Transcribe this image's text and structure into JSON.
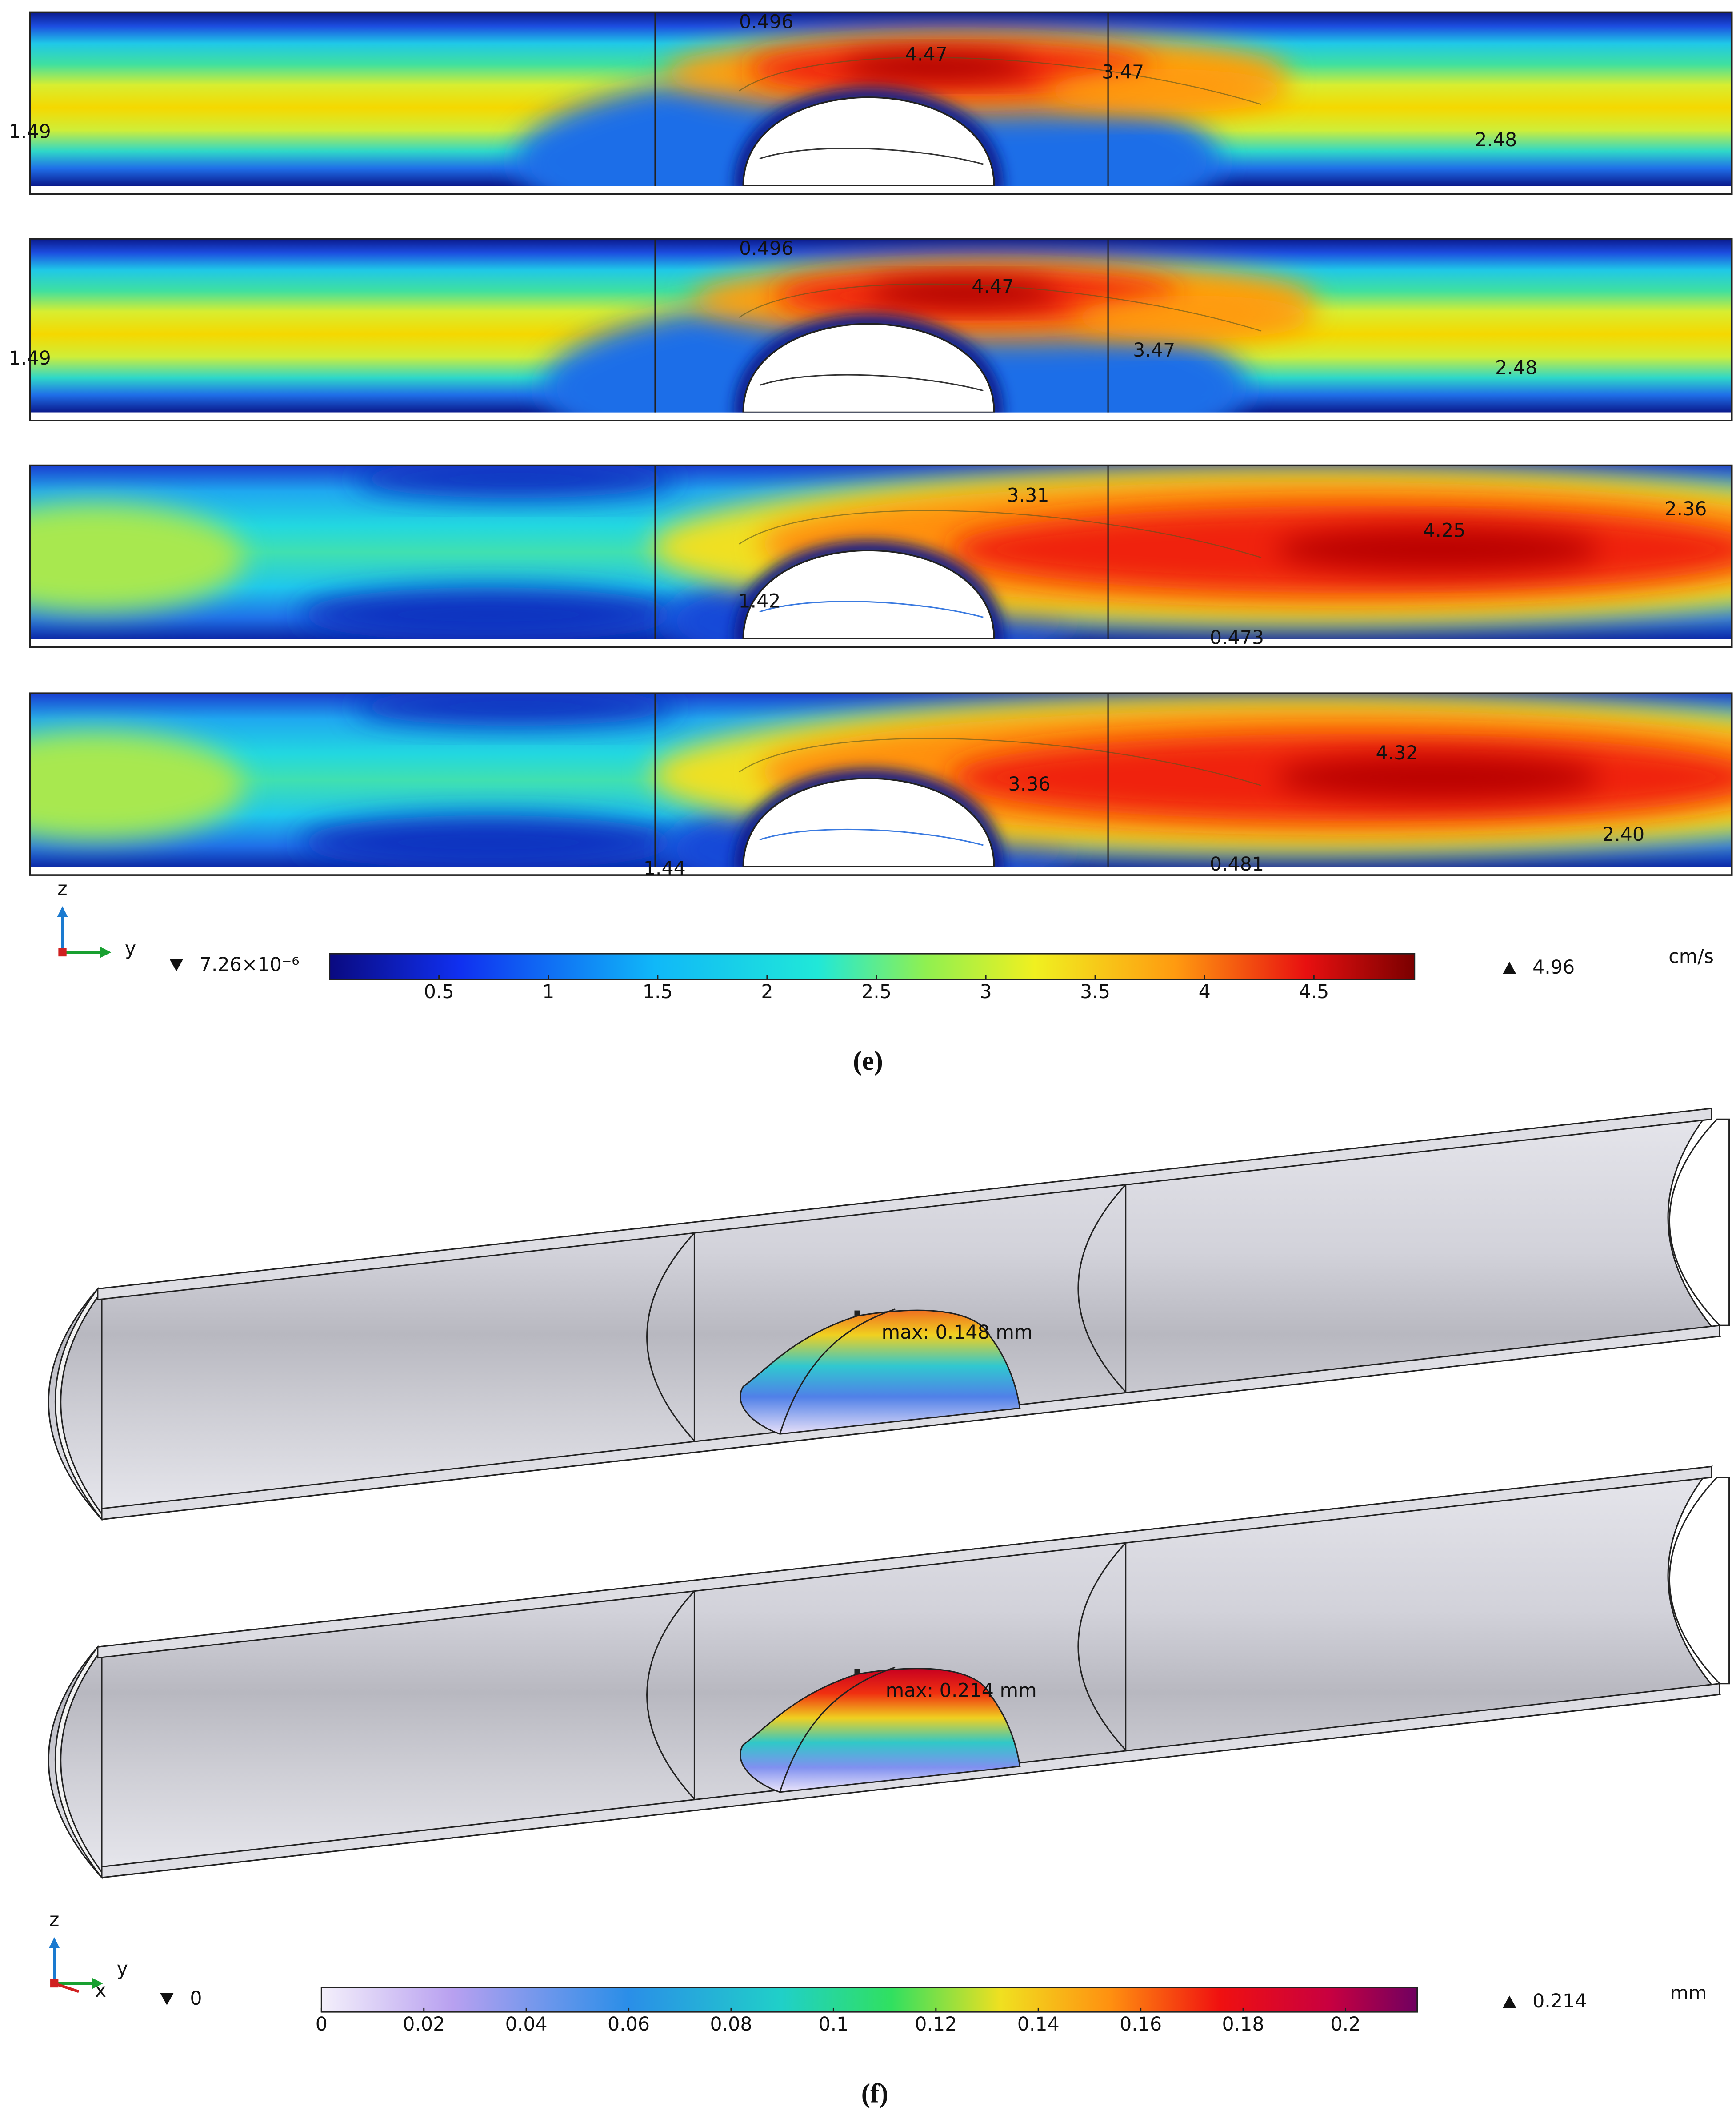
{
  "panel_e": {
    "plots": [
      {
        "labels": [
          "0.496",
          "4.47",
          "3.47",
          "1.49",
          "2.48"
        ]
      },
      {
        "labels": [
          "0.496",
          "4.47",
          "3.47",
          "1.49",
          "2.48"
        ]
      },
      {
        "labels": [
          "3.31",
          "4.25",
          "2.36",
          "1.42",
          "0.473"
        ]
      },
      {
        "labels": [
          "4.32",
          "3.36",
          "2.40",
          "1.44",
          "0.481"
        ]
      }
    ],
    "axes": {
      "vertical": "z",
      "horizontal": "y"
    },
    "colorbar": {
      "min": {
        "value": 7.26e-06,
        "label": "7.26×10⁻⁶"
      },
      "max": {
        "value": 4.96,
        "label": "4.96"
      },
      "unit": "cm/s",
      "ticks": [
        0.5,
        1,
        1.5,
        2,
        2.5,
        3,
        3.5,
        4,
        4.5
      ]
    },
    "caption": "(e)"
  },
  "panel_f": {
    "plots": [
      {
        "max_label": "max: 0.148 mm"
      },
      {
        "max_label": "max: 0.214 mm"
      }
    ],
    "axes": {
      "vertical": "z",
      "horizontal": "y",
      "depth": "x"
    },
    "colorbar": {
      "min": {
        "value": 0,
        "label": "0"
      },
      "max": {
        "value": 0.214,
        "label": "0.214"
      },
      "unit": "mm",
      "ticks": [
        0,
        0.02,
        0.04,
        0.06,
        0.08,
        0.1,
        0.12,
        0.14,
        0.16,
        0.18,
        0.2
      ]
    },
    "caption": "(f)"
  }
}
